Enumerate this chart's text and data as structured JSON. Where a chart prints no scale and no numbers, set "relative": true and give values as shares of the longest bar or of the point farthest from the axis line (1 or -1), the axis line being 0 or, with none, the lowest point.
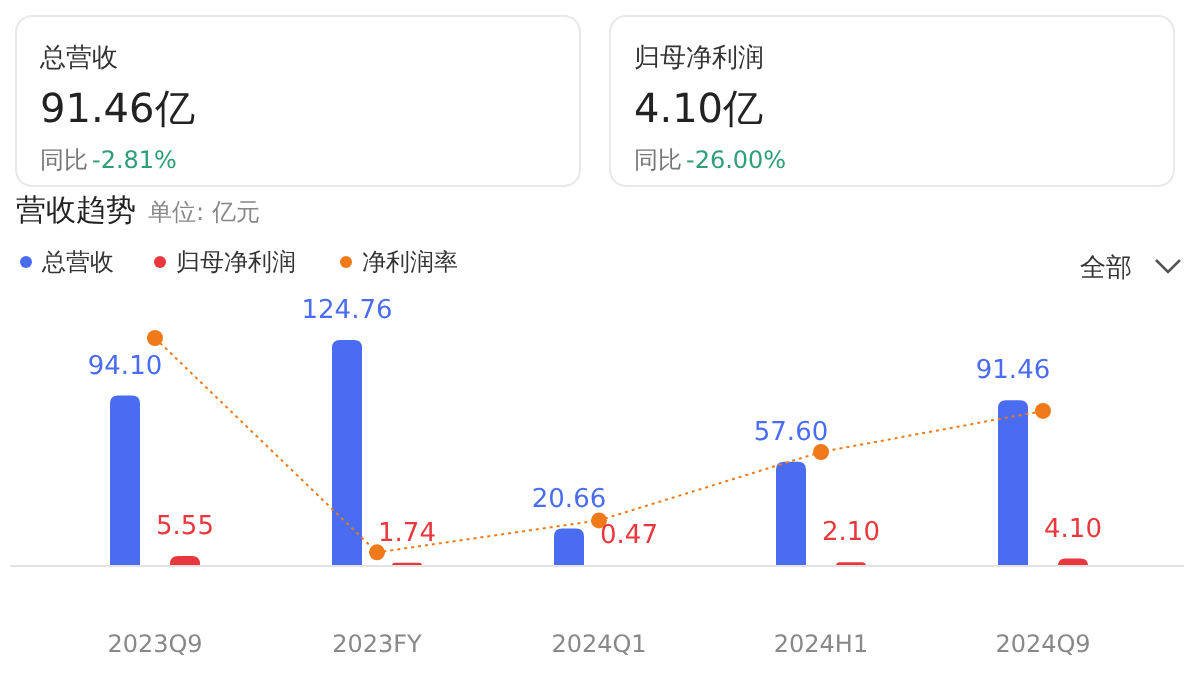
{
  "chart_data": [
    {
      "type": "other",
      "title": "总营收",
      "annotations": [
        "91.46亿",
        "同比",
        "-2.81%"
      ]
    },
    {
      "type": "other",
      "title": "归母净利润",
      "annotations": [
        "4.10亿",
        "同比",
        "-26.00%"
      ]
    },
    {
      "type": "bar",
      "title": "营收趋势",
      "subtitle": "单位: 亿元",
      "categories": [
        "2023Q9",
        "2023FY",
        "2024Q1",
        "2024H1",
        "2024Q9"
      ],
      "series": [
        {
          "name": "总营收",
          "color": "#4a6cf0",
          "values": [
            94.1,
            124.76,
            20.66,
            57.6,
            91.46
          ],
          "value_labels": [
            "94.10",
            "124.76",
            "20.66",
            "57.60",
            "91.46"
          ]
        },
        {
          "name": "归母净利润",
          "color": "#e8383d",
          "values": [
            5.55,
            1.74,
            0.47,
            2.1,
            4.1
          ],
          "value_labels": [
            "5.55",
            "1.74",
            "0.47",
            "2.10",
            "4.10"
          ]
        }
      ],
      "legend": "top left",
      "annotations": [
        "全部"
      ]
    },
    {
      "type": "line",
      "relative": true,
      "categories": [
        null,
        null,
        null,
        null,
        null
      ],
      "legend": "top left",
      "marker": "circle",
      "line_style": "dotted",
      "series": [
        {
          "name": "净利润率",
          "color": "#f07a1a",
          "values": [
            1,
            0.06,
            0.2,
            0.5,
            0.68
          ]
        }
      ]
    }
  ]
}
